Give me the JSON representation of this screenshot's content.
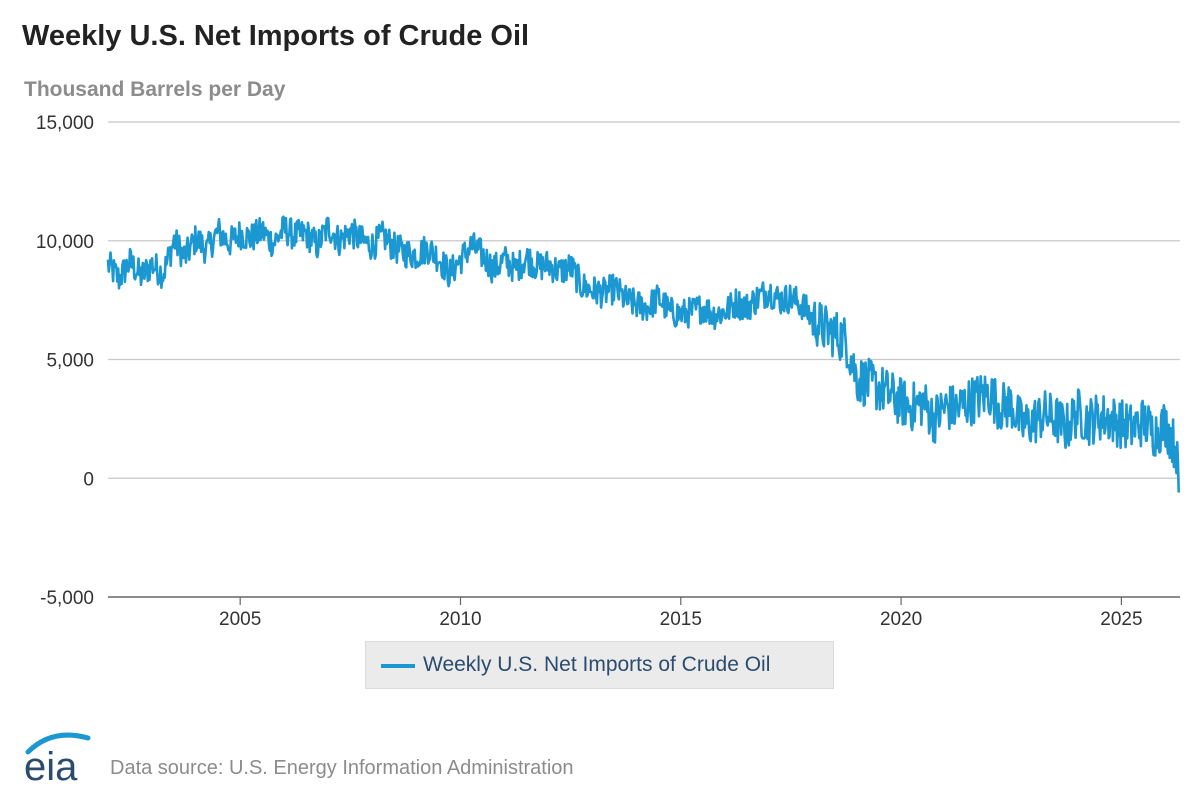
{
  "chart_data": {
    "type": "line",
    "title": "Weekly U.S. Net Imports of Crude Oil",
    "ylabel": "Thousand Barrels per Day",
    "xlabel": "",
    "ylim": [
      -5000,
      15000
    ],
    "xlim": [
      "2002-01-01",
      "2026-04-30"
    ],
    "y_ticks": [
      "15,000",
      "10,000",
      "5,000",
      "0",
      "-5,000"
    ],
    "y_tick_values": [
      15000,
      10000,
      5000,
      0,
      -5000
    ],
    "x_ticks": [
      "2005",
      "2010",
      "2015",
      "2020",
      "2025"
    ],
    "x_tick_values": [
      2005,
      2010,
      2015,
      2020,
      2025
    ],
    "grid": "horizontal",
    "legend_position": "bottom-center",
    "series": [
      {
        "name": "Weekly U.S. Net Imports of Crude Oil",
        "color": "#1b97d2",
        "x": [
          2002.0,
          2002.25,
          2002.5,
          2002.75,
          2003.0,
          2003.25,
          2003.5,
          2003.75,
          2004.0,
          2004.25,
          2004.5,
          2004.75,
          2005.0,
          2005.25,
          2005.5,
          2005.75,
          2006.0,
          2006.25,
          2006.5,
          2006.75,
          2007.0,
          2007.25,
          2007.5,
          2007.75,
          2008.0,
          2008.25,
          2008.5,
          2008.75,
          2009.0,
          2009.25,
          2009.5,
          2009.75,
          2010.0,
          2010.25,
          2010.5,
          2010.75,
          2011.0,
          2011.25,
          2011.5,
          2011.75,
          2012.0,
          2012.25,
          2012.5,
          2012.75,
          2013.0,
          2013.25,
          2013.5,
          2013.75,
          2014.0,
          2014.25,
          2014.5,
          2014.75,
          2015.0,
          2015.25,
          2015.5,
          2015.75,
          2016.0,
          2016.25,
          2016.5,
          2016.75,
          2017.0,
          2017.25,
          2017.5,
          2017.75,
          2018.0,
          2018.25,
          2018.5,
          2018.75,
          2019.0,
          2019.25,
          2019.5,
          2019.75,
          2020.0,
          2020.25,
          2020.5,
          2020.75,
          2021.0,
          2021.25,
          2021.5,
          2021.75,
          2022.0,
          2022.25,
          2022.5,
          2022.75,
          2023.0,
          2023.25,
          2023.5,
          2023.75,
          2024.0,
          2024.25,
          2024.5,
          2024.75,
          2025.0,
          2025.25,
          2025.5,
          2025.75,
          2026.0,
          2026.25,
          2026.3
        ],
        "values": [
          9000,
          8400,
          9100,
          8500,
          9000,
          8600,
          10000,
          9300,
          10100,
          9600,
          10400,
          9900,
          10300,
          10100,
          10400,
          9900,
          10500,
          10200,
          10300,
          9800,
          10600,
          10000,
          10400,
          10000,
          9800,
          10200,
          9700,
          9500,
          9400,
          9700,
          9300,
          8600,
          9200,
          9800,
          9400,
          8800,
          9200,
          8800,
          9300,
          8900,
          9000,
          8700,
          8900,
          8100,
          7900,
          7800,
          8000,
          7500,
          7300,
          7200,
          7600,
          7000,
          6900,
          7000,
          7200,
          6900,
          7000,
          7400,
          7200,
          7600,
          7900,
          7500,
          7600,
          7300,
          6700,
          6300,
          6100,
          5800,
          4200,
          4000,
          3800,
          3500,
          3200,
          3000,
          3200,
          2500,
          3000,
          2900,
          3200,
          3400,
          3600,
          3000,
          3100,
          2200,
          2400,
          2700,
          2500,
          2100,
          2800,
          2400,
          2600,
          2500,
          2300,
          2100,
          2400,
          1900,
          2300,
          1200,
          -600
        ]
      }
    ]
  },
  "source": "Data source: U.S. Energy Information Administration",
  "logo_text": "eia"
}
